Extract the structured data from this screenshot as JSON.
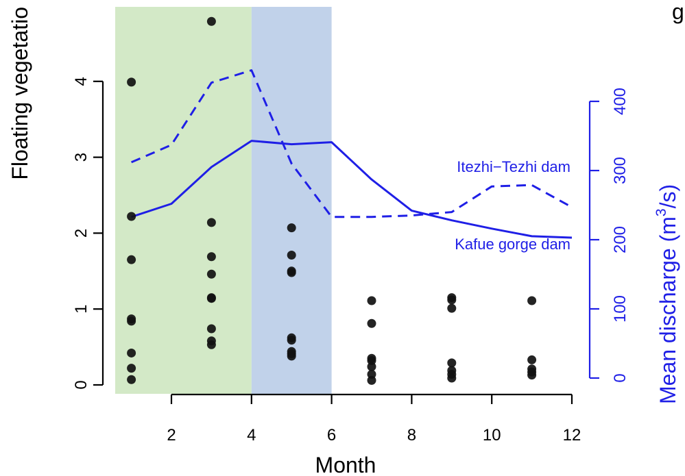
{
  "chart_data": {
    "type": "scatter",
    "title": "",
    "xlabel": "Month",
    "ylabel": "Floating vegetatio",
    "y2label_text": "Mean discharge (m",
    "y2label_sup": "3",
    "y2label_tail": "/s)",
    "top_right_text": "g",
    "xlim": [
      0.6,
      12
    ],
    "ylim": [
      -0.1,
      5.0
    ],
    "y2lim": [
      0,
      400
    ],
    "xticks": [
      2,
      4,
      6,
      8,
      10,
      12
    ],
    "yticks": [
      0,
      1,
      2,
      3,
      4
    ],
    "y2ticks": [
      0,
      100,
      200,
      300,
      400
    ],
    "shaded_regions": [
      {
        "x0": 0.6,
        "x1": 4,
        "color": "#d3e9c7"
      },
      {
        "x0": 4,
        "x1": 6,
        "color": "#c1d2ea"
      }
    ],
    "points": [
      {
        "x": 1,
        "y": 3.99
      },
      {
        "x": 1,
        "y": 2.22
      },
      {
        "x": 1,
        "y": 1.65
      },
      {
        "x": 1,
        "y": 0.87
      },
      {
        "x": 1,
        "y": 0.84
      },
      {
        "x": 1,
        "y": 0.42
      },
      {
        "x": 1,
        "y": 0.22
      },
      {
        "x": 1,
        "y": 0.07
      },
      {
        "x": 3,
        "y": 4.79
      },
      {
        "x": 3,
        "y": 2.14
      },
      {
        "x": 3,
        "y": 1.69
      },
      {
        "x": 3,
        "y": 1.46
      },
      {
        "x": 3,
        "y": 1.15
      },
      {
        "x": 3,
        "y": 1.14
      },
      {
        "x": 3,
        "y": 0.74
      },
      {
        "x": 3,
        "y": 0.58
      },
      {
        "x": 3,
        "y": 0.53
      },
      {
        "x": 5,
        "y": 2.07
      },
      {
        "x": 5,
        "y": 1.71
      },
      {
        "x": 5,
        "y": 1.5
      },
      {
        "x": 5,
        "y": 1.48
      },
      {
        "x": 5,
        "y": 0.62
      },
      {
        "x": 5,
        "y": 0.59
      },
      {
        "x": 5,
        "y": 0.44
      },
      {
        "x": 5,
        "y": 0.41
      },
      {
        "x": 5,
        "y": 0.38
      },
      {
        "x": 7,
        "y": 1.11
      },
      {
        "x": 7,
        "y": 0.81
      },
      {
        "x": 7,
        "y": 0.35
      },
      {
        "x": 7,
        "y": 0.32
      },
      {
        "x": 7,
        "y": 0.24
      },
      {
        "x": 7,
        "y": 0.14
      },
      {
        "x": 7,
        "y": 0.06
      },
      {
        "x": 9,
        "y": 1.15
      },
      {
        "x": 9,
        "y": 1.12
      },
      {
        "x": 9,
        "y": 1.01
      },
      {
        "x": 9,
        "y": 0.29
      },
      {
        "x": 9,
        "y": 0.19
      },
      {
        "x": 9,
        "y": 0.14
      },
      {
        "x": 9,
        "y": 0.09
      },
      {
        "x": 11,
        "y": 1.11
      },
      {
        "x": 11,
        "y": 0.33
      },
      {
        "x": 11,
        "y": 0.21
      },
      {
        "x": 11,
        "y": 0.17
      },
      {
        "x": 11,
        "y": 0.13
      }
    ],
    "point_color": "#111111",
    "series": [
      {
        "name": "Itezhi−Tezhi dam",
        "style": "dashed",
        "color": "#1f1fe6",
        "x": [
          1,
          2,
          3,
          4,
          5,
          6,
          7,
          8,
          9,
          10,
          11,
          12
        ],
        "y": [
          312,
          337,
          427,
          445,
          310,
          233,
          233,
          235,
          240,
          277,
          279,
          247
        ]
      },
      {
        "name": "Kafue gorge dam",
        "style": "solid",
        "color": "#1f1fe6",
        "x": [
          1,
          2,
          3,
          4,
          5,
          6,
          7,
          8,
          9,
          10,
          11,
          12
        ],
        "y": [
          233,
          252,
          305,
          343,
          338,
          341,
          287,
          242,
          228,
          216,
          205,
          203
        ]
      }
    ]
  }
}
